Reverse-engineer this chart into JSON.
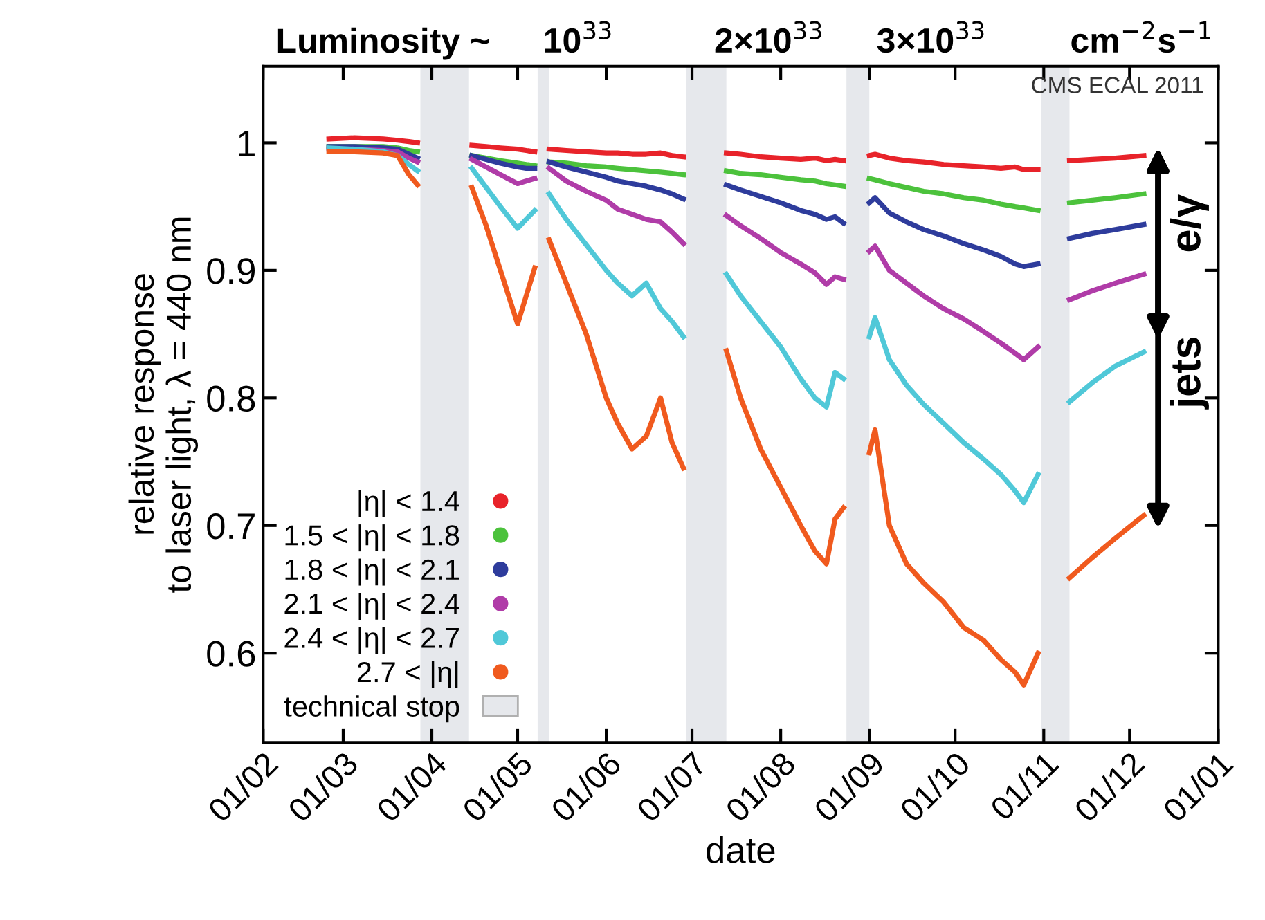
{
  "chart_data": {
    "type": "line",
    "xlabel": "date",
    "ylabel": "relative response\nto laser light, λ = 440 nm",
    "x": [
      "2011-02-24",
      "2011-03-05",
      "2011-03-15",
      "2011-03-20",
      "2011-03-24",
      "2011-03-27",
      "2011-04-01",
      "2011-04-15",
      "2011-04-20",
      "2011-04-25",
      "2011-05-01",
      "2011-05-04",
      "2011-05-07",
      "2011-05-10",
      "2011-05-12",
      "2011-05-18",
      "2011-05-25",
      "2011-06-01",
      "2011-06-05",
      "2011-06-10",
      "2011-06-15",
      "2011-06-20",
      "2011-06-24",
      "2011-06-28",
      "2011-07-05",
      "2011-07-13",
      "2011-07-18",
      "2011-07-25",
      "2011-08-01",
      "2011-08-08",
      "2011-08-13",
      "2011-08-17",
      "2011-08-20",
      "2011-08-23",
      "2011-08-28",
      "2011-09-01",
      "2011-09-03",
      "2011-09-08",
      "2011-09-14",
      "2011-09-20",
      "2011-09-27",
      "2011-10-04",
      "2011-10-11",
      "2011-10-17",
      "2011-10-22",
      "2011-10-25",
      "2011-10-30",
      "2011-11-05",
      "2011-11-10",
      "2011-11-18",
      "2011-11-26",
      "2011-12-06"
    ],
    "series": [
      {
        "name": "|η| < 1.4",
        "color": "#e8232a",
        "values": [
          1.003,
          1.004,
          1.003,
          1.002,
          1.001,
          1.0,
          null,
          0.998,
          0.997,
          0.996,
          0.995,
          0.994,
          0.993,
          null,
          0.995,
          0.994,
          0.993,
          0.992,
          0.992,
          0.991,
          0.991,
          0.992,
          0.99,
          0.989,
          null,
          0.992,
          0.991,
          0.989,
          0.988,
          0.987,
          0.988,
          0.986,
          0.987,
          0.986,
          null,
          0.99,
          0.991,
          0.988,
          0.986,
          0.985,
          0.983,
          0.982,
          0.981,
          0.98,
          0.981,
          0.979,
          0.979,
          null,
          0.986,
          0.987,
          0.988,
          0.99
        ]
      },
      {
        "name": "1.5 < |η| < 1.8",
        "color": "#4cc23c",
        "values": [
          0.997,
          0.997,
          0.997,
          0.996,
          0.994,
          0.993,
          null,
          0.99,
          0.988,
          0.986,
          0.984,
          0.983,
          0.982,
          null,
          0.985,
          0.984,
          0.982,
          0.981,
          0.98,
          0.979,
          0.978,
          0.977,
          0.976,
          0.975,
          null,
          0.978,
          0.976,
          0.975,
          0.973,
          0.971,
          0.97,
          0.968,
          0.967,
          0.966,
          null,
          0.972,
          0.971,
          0.968,
          0.965,
          0.962,
          0.96,
          0.957,
          0.955,
          0.952,
          0.95,
          0.949,
          0.947,
          null,
          0.953,
          0.955,
          0.957,
          0.96
        ]
      },
      {
        "name": "1.8 < |η| < 2.1",
        "color": "#2e3c9c",
        "values": [
          0.997,
          0.997,
          0.996,
          0.995,
          0.991,
          0.988,
          null,
          0.99,
          0.987,
          0.984,
          0.981,
          0.98,
          0.98,
          null,
          0.985,
          0.981,
          0.977,
          0.973,
          0.97,
          0.968,
          0.966,
          0.963,
          0.96,
          0.956,
          null,
          0.967,
          0.963,
          0.958,
          0.953,
          0.947,
          0.944,
          0.94,
          0.942,
          0.937,
          null,
          0.953,
          0.957,
          0.945,
          0.938,
          0.932,
          0.927,
          0.921,
          0.916,
          0.911,
          0.905,
          0.903,
          0.905,
          null,
          0.925,
          0.929,
          0.932,
          0.936
        ]
      },
      {
        "name": "2.1 < |η| < 2.4",
        "color": "#b03ca8",
        "values": [
          0.995,
          0.995,
          0.994,
          0.993,
          0.988,
          0.985,
          null,
          0.987,
          0.981,
          0.975,
          0.968,
          0.97,
          0.972,
          null,
          0.98,
          0.97,
          0.962,
          0.955,
          0.948,
          0.944,
          0.94,
          0.938,
          0.93,
          0.921,
          null,
          0.943,
          0.935,
          0.925,
          0.914,
          0.905,
          0.898,
          0.889,
          0.895,
          0.893,
          null,
          0.915,
          0.919,
          0.9,
          0.89,
          0.88,
          0.87,
          0.862,
          0.852,
          0.843,
          0.835,
          0.83,
          0.84,
          null,
          0.877,
          0.884,
          0.89,
          0.897
        ]
      },
      {
        "name": "2.4 < |η| < 2.7",
        "color": "#50c8d8",
        "values": [
          0.996,
          0.995,
          0.993,
          0.99,
          0.983,
          0.978,
          null,
          0.98,
          0.965,
          0.95,
          0.933,
          0.94,
          0.947,
          null,
          0.96,
          0.94,
          0.92,
          0.9,
          0.89,
          0.88,
          0.89,
          0.87,
          0.86,
          0.848,
          null,
          0.897,
          0.88,
          0.86,
          0.84,
          0.815,
          0.8,
          0.793,
          0.82,
          0.815,
          null,
          0.848,
          0.863,
          0.83,
          0.81,
          0.795,
          0.78,
          0.765,
          0.752,
          0.74,
          0.727,
          0.718,
          0.74,
          null,
          0.797,
          0.812,
          0.825,
          0.836
        ]
      },
      {
        "name": "2.7 < |η|",
        "color": "#f05a1e",
        "values": [
          0.993,
          0.993,
          0.992,
          0.99,
          0.975,
          0.967,
          null,
          0.965,
          0.935,
          0.9,
          0.858,
          0.88,
          0.902,
          null,
          0.924,
          0.89,
          0.85,
          0.8,
          0.78,
          0.76,
          0.77,
          0.8,
          0.765,
          0.745,
          null,
          0.837,
          0.8,
          0.76,
          0.73,
          0.7,
          0.68,
          0.67,
          0.705,
          0.714,
          null,
          0.757,
          0.775,
          0.7,
          0.67,
          0.655,
          0.64,
          0.62,
          0.61,
          0.595,
          0.585,
          0.575,
          0.6,
          null,
          0.659,
          0.675,
          0.69,
          0.708
        ]
      }
    ],
    "bands": [
      {
        "axis": "x",
        "from": "2011-03-28",
        "to": "2011-04-14",
        "label": "technical stop",
        "color": "#e6e8ec"
      },
      {
        "axis": "x",
        "from": "2011-05-08",
        "to": "2011-05-12",
        "color": "#e6e8ec"
      },
      {
        "axis": "x",
        "from": "2011-06-29",
        "to": "2011-07-13",
        "color": "#e6e8ec"
      },
      {
        "axis": "x",
        "from": "2011-08-24",
        "to": "2011-09-01",
        "color": "#e6e8ec"
      },
      {
        "axis": "x",
        "from": "2011-10-31",
        "to": "2011-11-10",
        "color": "#e6e8ec"
      }
    ],
    "annotations": [
      "Luminosity ~",
      "10$^{33}$",
      "2×10$^{33}$",
      "3×10$^{33}$",
      "cm$^{−2}$s$^{−1}$",
      "CMS ECAL 2011",
      "e/γ",
      "jets"
    ],
    "xlim": [
      "2011-02-01",
      "2012-01-01"
    ],
    "xticks": [
      {
        "value": "2011-02-01",
        "label": "01/02"
      },
      {
        "value": "2011-03-01",
        "label": "01/03"
      },
      {
        "value": "2011-04-01",
        "label": "01/04"
      },
      {
        "value": "2011-05-01",
        "label": "01/05"
      },
      {
        "value": "2011-06-01",
        "label": "01/06"
      },
      {
        "value": "2011-07-01",
        "label": "01/07"
      },
      {
        "value": "2011-08-01",
        "label": "01/08"
      },
      {
        "value": "2011-09-01",
        "label": "01/09"
      },
      {
        "value": "2011-10-01",
        "label": "01/10"
      },
      {
        "value": "2011-11-01",
        "label": "01/11"
      },
      {
        "value": "2011-12-01",
        "label": "01/12"
      },
      {
        "value": "2012-01-01",
        "label": "01/01"
      }
    ],
    "ylim": [
      0.53,
      1.06
    ],
    "yticks": [
      0.6,
      0.7,
      0.8,
      0.9,
      1
    ],
    "grid": false,
    "legend": "bottom left",
    "marker": "none",
    "line_style": "solid"
  }
}
